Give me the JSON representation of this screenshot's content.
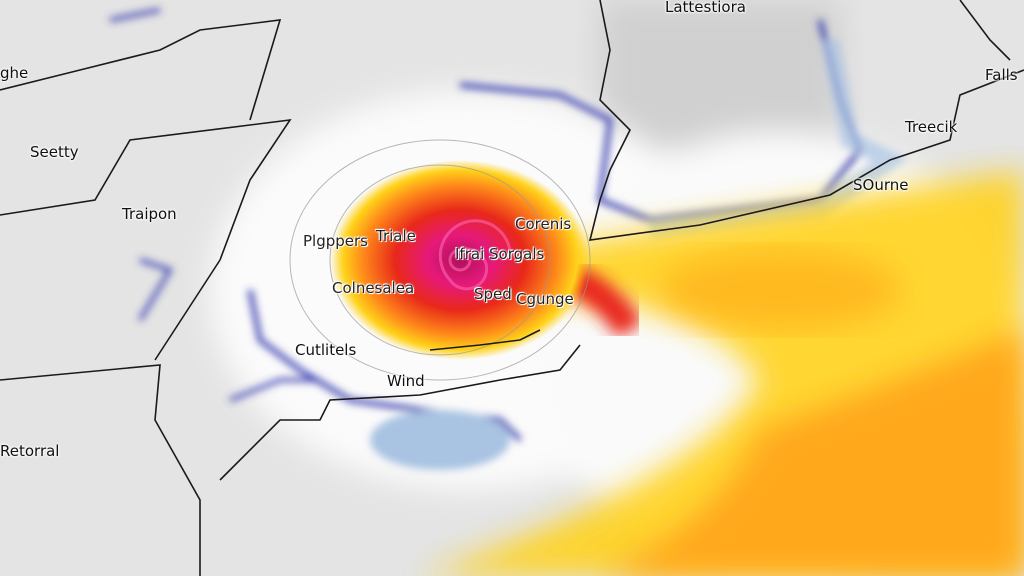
{
  "map": {
    "labels": {
      "top_center": "Lattestiora",
      "top_left": "ghe",
      "top_right": "Falls",
      "left_upper": "Seetty",
      "left_mid": "Traipon",
      "left_lower": "Retorral",
      "right_upper": "Treecik",
      "right_mid": "SOurne",
      "coast_left": "Cutlitels",
      "coast": "Wind",
      "storm_1": "Plgppers",
      "storm_2": "Triale",
      "storm_3": "Corenis",
      "storm_4": "Ifrai Sorgals",
      "storm_5": "Colnesalea",
      "storm_6": "Sped",
      "storm_7": "Cgunge"
    },
    "colors": {
      "land": "#e6e6e6",
      "cold_band": "#3a3fb0",
      "light_blue": "#a9c3e2",
      "yellow": "#ffd21a",
      "orange": "#ff8a1a",
      "red": "#e8281a",
      "magenta": "#e6197a",
      "border": "#1a1a1a"
    }
  }
}
